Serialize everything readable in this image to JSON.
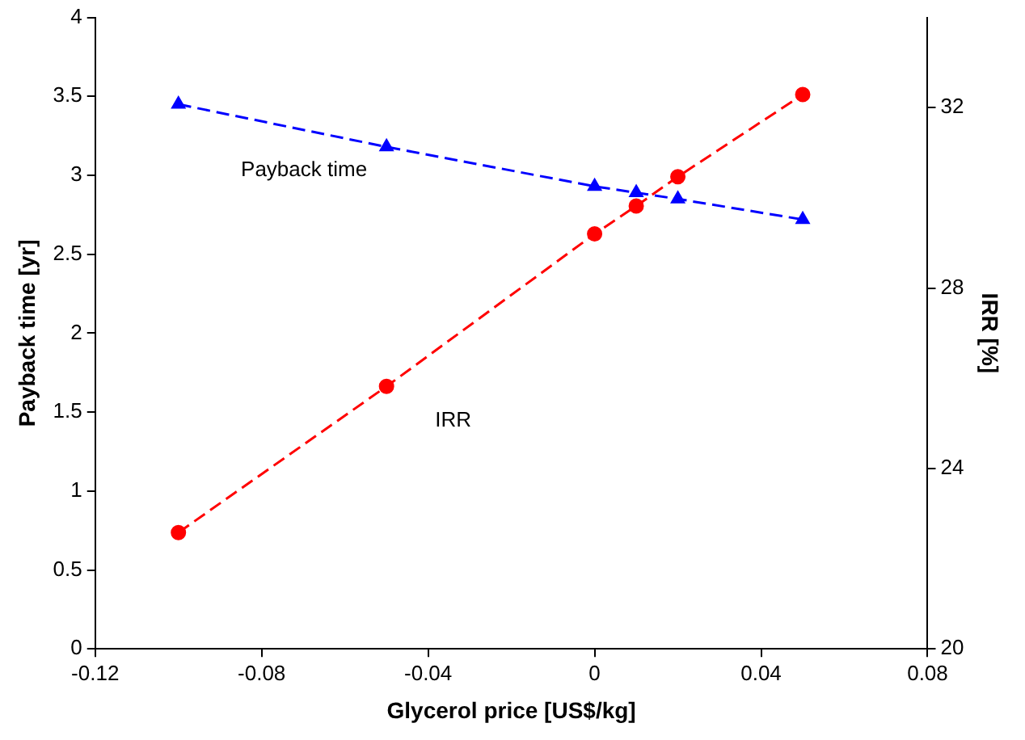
{
  "chart_data": {
    "type": "line",
    "xlabel": "Glycerol price [US$/kg]",
    "ylabel": "Payback time [yr]",
    "y2label": "IRR [%]",
    "x": [
      -0.1,
      -0.05,
      0,
      0.01,
      0.02,
      0.05
    ],
    "series": [
      {
        "name": "Payback time",
        "color": "#0000ff",
        "marker": "triangle",
        "values": [
          3.45,
          3.18,
          2.93,
          2.89,
          2.85,
          2.72
        ]
      },
      {
        "name": "IRR",
        "color": "#ff0000",
        "marker": "circle",
        "axis": "y2",
        "values": [
          22.58,
          25.82,
          29.2,
          29.82,
          30.47,
          32.29
        ]
      }
    ],
    "xlim": [
      -0.12,
      0.08
    ],
    "xticks": [
      -0.12,
      -0.08,
      -0.04,
      0,
      0.04,
      0.08
    ],
    "ylim": [
      0,
      4
    ],
    "yticks": [
      0,
      0.5,
      1,
      1.5,
      2,
      2.5,
      3,
      3.5,
      4
    ],
    "y2lim": [
      20,
      34
    ],
    "y2ticks": [
      20,
      24,
      28,
      32
    ],
    "line_style": "dashed",
    "grid": false,
    "legend": false
  }
}
